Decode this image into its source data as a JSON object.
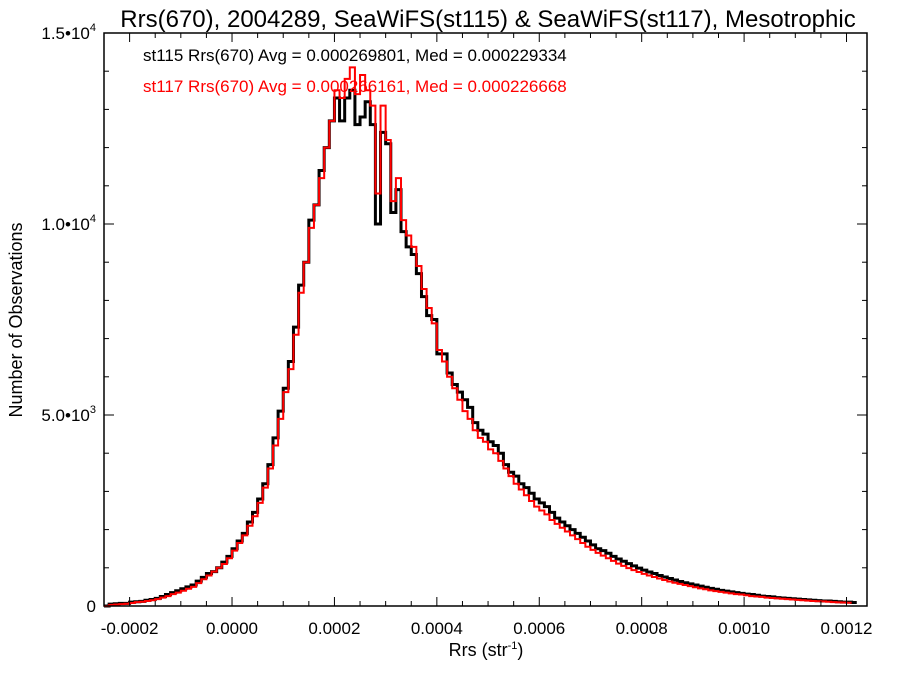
{
  "chart_data": {
    "type": "histogram-step",
    "title": "Rrs(670), 2004289, SeaWiFS(st115) & SeaWiFS(st117), Mesotrophic",
    "xlabel": "Rrs (str",
    "xlabel_sup": "-1",
    "xlabel_close": ")",
    "ylabel": "Number of Observations",
    "xlim": [
      -0.00025,
      0.00124
    ],
    "ylim": [
      0,
      15000
    ],
    "x_ticks": [
      {
        "value": -0.0002,
        "label": "-0.0002"
      },
      {
        "value": 0.0,
        "label": "0.0000"
      },
      {
        "value": 0.0002,
        "label": "0.0002"
      },
      {
        "value": 0.0004,
        "label": "0.0004"
      },
      {
        "value": 0.0006,
        "label": "0.0006"
      },
      {
        "value": 0.0008,
        "label": "0.0008"
      },
      {
        "value": 0.001,
        "label": "0.0010"
      },
      {
        "value": 0.0012,
        "label": "0.0012"
      }
    ],
    "y_ticks": [
      {
        "value": 0,
        "label": "0",
        "exp": ""
      },
      {
        "value": 5000,
        "label": "5.0•10",
        "exp": "3"
      },
      {
        "value": 10000,
        "label": "1.0•10",
        "exp": "4"
      },
      {
        "value": 15000,
        "label": "1.5•10",
        "exp": "4"
      }
    ],
    "bins": {
      "start": -0.00025,
      "width": 1e-05
    },
    "series": [
      {
        "name": "st115",
        "legend": "st115 Rrs(670) Avg = 0.000269801, Med = 0.000229334",
        "color": "#000000",
        "values": [
          0,
          50,
          60,
          70,
          70,
          100,
          110,
          120,
          150,
          170,
          200,
          250,
          300,
          350,
          400,
          450,
          500,
          550,
          650,
          750,
          850,
          900,
          1000,
          1150,
          1300,
          1500,
          1700,
          1900,
          2200,
          2450,
          2800,
          3200,
          3700,
          4400,
          5100,
          5700,
          6400,
          7300,
          8400,
          9000,
          10100,
          10500,
          11400,
          12000,
          12700,
          13300,
          12700,
          13300,
          13500,
          12600,
          12800,
          13200,
          12600,
          10000,
          12400,
          12100,
          10300,
          10900,
          9800,
          9400,
          9200,
          8700,
          8100,
          7600,
          7500,
          6600,
          6600,
          6100,
          5800,
          5600,
          5400,
          5200,
          4800,
          4600,
          4500,
          4300,
          4200,
          4000,
          3700,
          3500,
          3400,
          3200,
          3100,
          2950,
          2800,
          2700,
          2600,
          2450,
          2300,
          2200,
          2100,
          2000,
          1900,
          1800,
          1700,
          1600,
          1500,
          1450,
          1380,
          1300,
          1230,
          1170,
          1110,
          1050,
          990,
          940,
          890,
          850,
          800,
          760,
          720,
          680,
          640,
          610,
          580,
          550,
          520,
          490,
          460,
          440,
          410,
          390,
          370,
          350,
          330,
          310,
          300,
          280,
          260,
          250,
          240,
          220,
          210,
          200,
          190,
          180,
          170,
          160,
          150,
          140,
          130,
          130,
          120,
          110,
          100,
          100,
          90
        ]
      },
      {
        "name": "st117",
        "legend": "st117 Rrs(670) Avg = 0.000266161, Med = 0.000226668",
        "color": "#ff0000",
        "values": [
          0,
          30,
          40,
          50,
          60,
          80,
          100,
          110,
          130,
          150,
          180,
          220,
          260,
          310,
          350,
          400,
          450,
          500,
          600,
          700,
          800,
          900,
          1000,
          1100,
          1250,
          1450,
          1650,
          1850,
          2100,
          2350,
          2700,
          3100,
          3600,
          4200,
          4900,
          5600,
          6200,
          7100,
          8200,
          9000,
          9900,
          10500,
          11200,
          12000,
          12700,
          13500,
          13300,
          13800,
          14100,
          13400,
          13900,
          13500,
          13100,
          10800,
          13100,
          12200,
          10600,
          11200,
          10100,
          9700,
          9400,
          8900,
          8300,
          7800,
          7400,
          6700,
          6400,
          6000,
          5700,
          5400,
          5100,
          4900,
          4600,
          4400,
          4300,
          4100,
          4000,
          3800,
          3600,
          3400,
          3200,
          3050,
          2900,
          2750,
          2600,
          2500,
          2400,
          2250,
          2150,
          2050,
          1950,
          1850,
          1750,
          1650,
          1550,
          1470,
          1390,
          1320,
          1250,
          1180,
          1110,
          1050,
          990,
          940,
          890,
          840,
          800,
          760,
          720,
          680,
          640,
          610,
          580,
          550,
          520,
          490,
          460,
          440,
          410,
          390,
          370,
          350,
          330,
          310,
          300,
          280,
          260,
          250,
          240,
          220,
          210,
          200,
          190,
          180,
          170,
          160,
          150,
          140,
          130,
          125,
          120,
          110,
          100,
          95,
          90,
          85
        ]
      }
    ],
    "legend_position": "top-left"
  }
}
